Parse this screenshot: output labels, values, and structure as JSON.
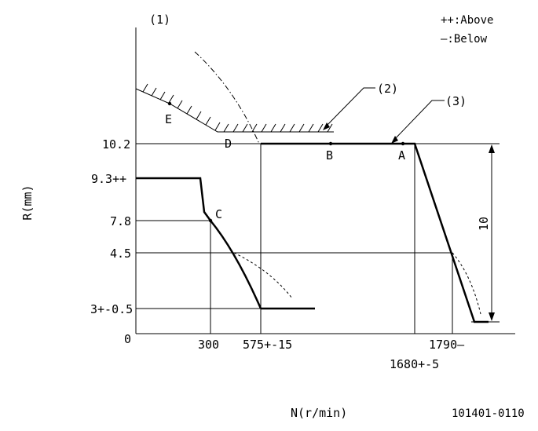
{
  "diagram": {
    "panel_marker": "(1)",
    "legend": {
      "above": "++:Above",
      "below": "—:Below"
    },
    "callouts": {
      "c2": "(2)",
      "c3": "(3)"
    },
    "y_axis": {
      "label": "R(mm)",
      "ticks": [
        "10.2",
        "9.3++",
        "7.8",
        "4.5",
        "3+-0.5",
        "0"
      ]
    },
    "x_axis": {
      "label": "N(r/min)",
      "ticks": [
        "300",
        "575+-15",
        "1790—",
        "1680+-5"
      ]
    },
    "points": {
      "A": "A",
      "B": "B",
      "C": "C",
      "D": "D",
      "E": "E"
    },
    "dimension": "10",
    "code": "101401-0110"
  }
}
